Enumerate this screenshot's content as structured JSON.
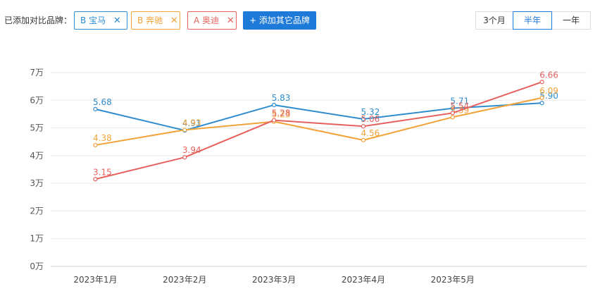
{
  "toolbar": {
    "added_label": "已添加对比品牌：",
    "brands": [
      {
        "prefix": "B",
        "name": "宝马",
        "color": "#2f8ccd"
      },
      {
        "prefix": "B",
        "name": "奔驰",
        "color": "#f1a33a"
      },
      {
        "prefix": "A",
        "name": "奥迪",
        "color": "#e5615e"
      }
    ],
    "remove_symbol": "✕",
    "add_label": "+ 添加其它品牌",
    "ranges": [
      "3个月",
      "半年",
      "一年"
    ],
    "active_range": "半年"
  },
  "chart_data": {
    "type": "line",
    "categories": [
      "2023年1月",
      "2023年2月",
      "2023年3月",
      "2023年4月",
      "2023年5月",
      ""
    ],
    "yticks": [
      "0万",
      "1万",
      "2万",
      "3万",
      "4万",
      "5万",
      "6万",
      "7万"
    ],
    "ylim": [
      0,
      7
    ],
    "grid": true,
    "series": [
      {
        "name": "宝马",
        "color": "#2f8ccd",
        "values": [
          5.68,
          4.91,
          5.83,
          5.32,
          5.71,
          5.9
        ],
        "labels": [
          "5.68",
          "4.91",
          "5.83",
          "5.32",
          "5.71",
          "5.90"
        ]
      },
      {
        "name": "奔驰",
        "color": "#f1a33a",
        "values": [
          4.38,
          4.93,
          5.23,
          4.56,
          5.39,
          6.09
        ],
        "labels": [
          "4.38",
          "4.93",
          "5.23",
          "4.56",
          "5.39",
          "6.09"
        ]
      },
      {
        "name": "奥迪",
        "color": "#e5615e",
        "values": [
          3.15,
          3.94,
          5.28,
          5.06,
          5.54,
          6.66
        ],
        "labels": [
          "3.15",
          "3.94",
          "5.28",
          "5.06",
          "5.54",
          "6.66"
        ]
      }
    ]
  }
}
